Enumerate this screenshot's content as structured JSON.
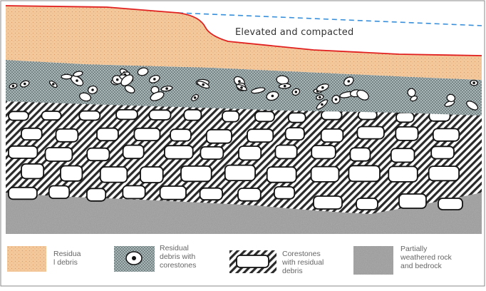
{
  "diagram": {
    "annotation": "Elevated and compacted",
    "colors": {
      "residual_debris": "#f3c89b",
      "debris_with_corestones": "#86979a",
      "corestone_hatch": "#2a2a2a",
      "weathered_rock": "#9c9c9c",
      "surface_line": "#e02020",
      "original_surface_line": "#3a8fd8"
    }
  },
  "legend": {
    "items": [
      {
        "label": "Residua\nl debris",
        "swatch": "residual-debris"
      },
      {
        "label": "Residual\ndebris with\ncorestones",
        "swatch": "debris-with-corestones"
      },
      {
        "label": "Corestones\nwith residual\ndebris",
        "swatch": "corestones-hatched"
      },
      {
        "label": "Partially\nweathered rock\nand bedrock",
        "swatch": "weathered-rock"
      }
    ]
  }
}
